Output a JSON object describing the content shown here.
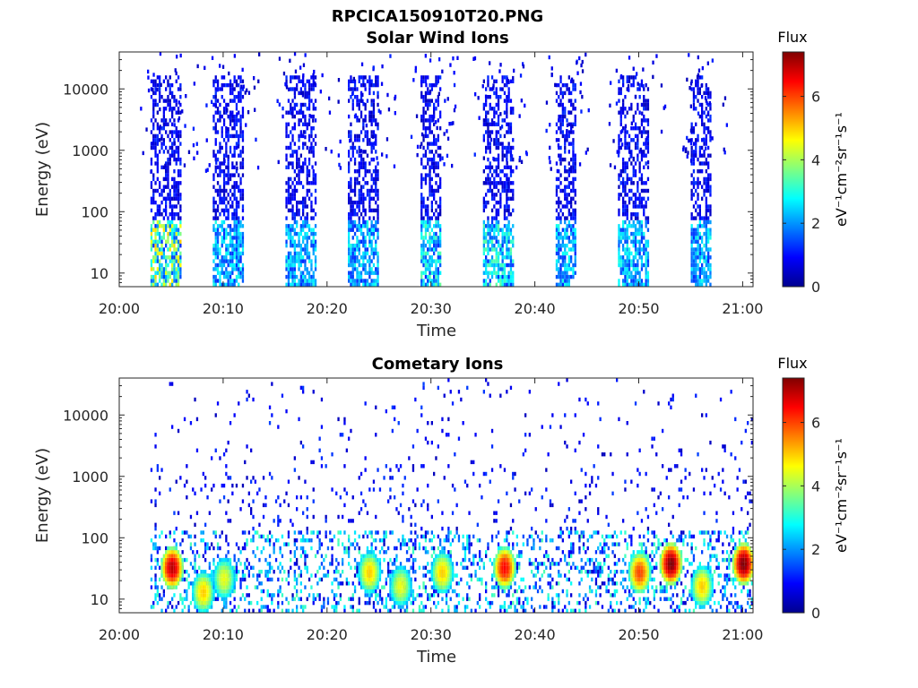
{
  "figure": {
    "title": "RPCICA150910T20.PNG"
  },
  "colorbar": {
    "title": "Flux",
    "unit_label": "eV⁻¹cm⁻²sr⁻¹s⁻¹",
    "ticks": [
      "0",
      "2",
      "4",
      "6"
    ],
    "range": [
      0,
      7.4
    ],
    "colormap": "jet"
  },
  "chart_data": [
    {
      "type": "heatmap",
      "title": "Solar Wind Ions",
      "xlabel": "Time",
      "ylabel": "Energy (eV)",
      "x_range": [
        "20:00",
        "21:01"
      ],
      "x_ticks": [
        "20:00",
        "20:10",
        "20:20",
        "20:30",
        "20:40",
        "20:50",
        "21:00"
      ],
      "y_scale": "log",
      "y_range": [
        6,
        40000
      ],
      "y_ticks": [
        "10",
        "100",
        "1000",
        "10000"
      ],
      "z_range": [
        0,
        7.4
      ],
      "bursts": [
        {
          "start": "20:03",
          "end": "20:06",
          "peak_flux": 5.0,
          "peak_energy_eV": 30
        },
        {
          "start": "20:09",
          "end": "20:12",
          "peak_flux": 3.0,
          "peak_energy_eV": 20
        },
        {
          "start": "20:16",
          "end": "20:19",
          "peak_flux": 3.0,
          "peak_energy_eV": 20
        },
        {
          "start": "20:22",
          "end": "20:25",
          "peak_flux": 3.0,
          "peak_energy_eV": 20
        },
        {
          "start": "20:29",
          "end": "20:31",
          "peak_flux": 3.5,
          "peak_energy_eV": 20
        },
        {
          "start": "20:35",
          "end": "20:38",
          "peak_flux": 3.5,
          "peak_energy_eV": 20
        },
        {
          "start": "20:42",
          "end": "20:44",
          "peak_flux": 3.0,
          "peak_energy_eV": 20
        },
        {
          "start": "20:48",
          "end": "20:51",
          "peak_flux": 3.0,
          "peak_energy_eV": 20
        },
        {
          "start": "20:55",
          "end": "20:57",
          "peak_flux": 3.0,
          "peak_energy_eV": 20
        }
      ]
    },
    {
      "type": "heatmap",
      "title": "Cometary Ions",
      "xlabel": "Time",
      "ylabel": "Energy (eV)",
      "x_range": [
        "20:00",
        "21:01"
      ],
      "x_ticks": [
        "20:00",
        "20:10",
        "20:20",
        "20:30",
        "20:40",
        "20:50",
        "21:00"
      ],
      "y_scale": "log",
      "y_range": [
        6,
        40000
      ],
      "y_ticks": [
        "10",
        "100",
        "1000",
        "10000"
      ],
      "z_range": [
        0,
        7.4
      ],
      "hotspots": [
        {
          "time": "20:05",
          "energy_eV": 30,
          "flux": 7.0
        },
        {
          "time": "20:08",
          "energy_eV": 12,
          "flux": 5.0
        },
        {
          "time": "20:10",
          "energy_eV": 20,
          "flux": 4.5
        },
        {
          "time": "20:24",
          "energy_eV": 25,
          "flux": 5.0
        },
        {
          "time": "20:27",
          "energy_eV": 15,
          "flux": 4.5
        },
        {
          "time": "20:31",
          "energy_eV": 25,
          "flux": 5.0
        },
        {
          "time": "20:37",
          "energy_eV": 30,
          "flux": 6.5
        },
        {
          "time": "20:50",
          "energy_eV": 25,
          "flux": 6.0
        },
        {
          "time": "20:53",
          "energy_eV": 35,
          "flux": 7.4
        },
        {
          "time": "20:56",
          "energy_eV": 15,
          "flux": 5.0
        },
        {
          "time": "21:00",
          "energy_eV": 35,
          "flux": 7.4
        }
      ]
    }
  ]
}
